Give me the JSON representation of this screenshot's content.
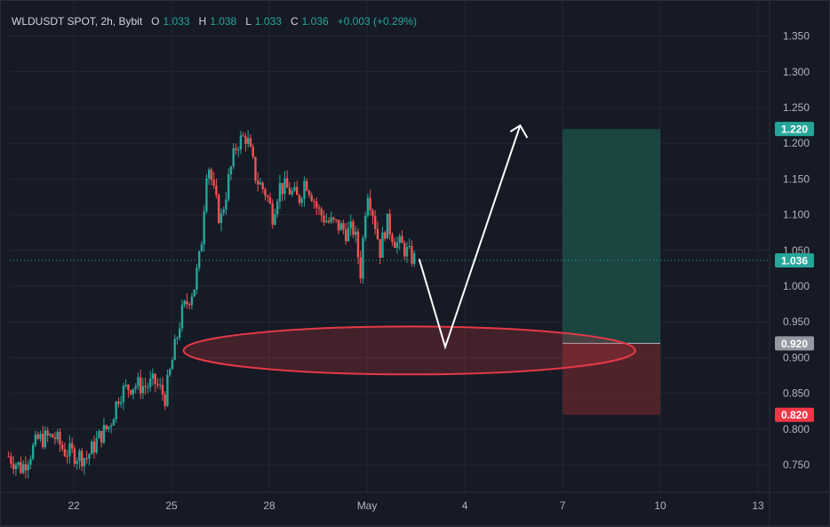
{
  "legend": {
    "symbol": "WLDUSDT SPOT, 2h, Bybit",
    "open_label": "O",
    "open": "1.033",
    "high_label": "H",
    "high": "1.038",
    "low_label": "L",
    "low": "1.033",
    "close_label": "C",
    "close": "1.036",
    "change": "+0.003 (+0.29%)"
  },
  "colors": {
    "up": "#26a69a",
    "down": "#ef5350",
    "grid": "#232733",
    "axis_text": "#b2b5be",
    "arrow": "#ffffff",
    "ellipse": "#e53946",
    "target_zone": "#1b4d47",
    "stop_zone": "#5a242c",
    "entry_tag": "#9598a1",
    "last_price_tag": "#26a69a",
    "stop_tag": "#f23645"
  },
  "chart_data": {
    "type": "candlestick",
    "symbol": "WLDUSDT SPOT, 2h, Bybit",
    "y_axis": {
      "ticks": [
        "1.350",
        "1.300",
        "1.250",
        "1.200",
        "1.150",
        "1.100",
        "1.050",
        "1.000",
        "0.950",
        "0.900",
        "0.850",
        "0.800",
        "0.750"
      ],
      "range": [
        0.7,
        1.39
      ]
    },
    "x_axis": {
      "ticks": [
        {
          "label": "22",
          "day": 22
        },
        {
          "label": "25",
          "day": 25
        },
        {
          "label": "28",
          "day": 28
        },
        {
          "label": "May",
          "day": 31
        },
        {
          "label": "4",
          "day": 34
        },
        {
          "label": "7",
          "day": 37
        },
        {
          "label": "10",
          "day": 40
        },
        {
          "label": "13",
          "day": 43
        }
      ],
      "range": [
        20.0,
        45.0
      ]
    },
    "price_path": [
      [
        20.0,
        0.762
      ],
      [
        20.4,
        0.745
      ],
      [
        20.9,
        0.785
      ],
      [
        21.4,
        0.79
      ],
      [
        21.7,
        0.77
      ],
      [
        22.0,
        0.765
      ],
      [
        22.4,
        0.76
      ],
      [
        22.8,
        0.79
      ],
      [
        23.1,
        0.805
      ],
      [
        23.4,
        0.85
      ],
      [
        23.8,
        0.862
      ],
      [
        24.2,
        0.86
      ],
      [
        24.5,
        0.865
      ],
      [
        24.8,
        0.845
      ],
      [
        25.0,
        0.89
      ],
      [
        25.3,
        0.96
      ],
      [
        25.7,
        1.0
      ],
      [
        25.9,
        1.05
      ],
      [
        26.1,
        1.18
      ],
      [
        26.3,
        1.13
      ],
      [
        26.5,
        1.09
      ],
      [
        26.8,
        1.16
      ],
      [
        27.0,
        1.2
      ],
      [
        27.3,
        1.21
      ],
      [
        27.6,
        1.15
      ],
      [
        27.9,
        1.13
      ],
      [
        28.1,
        1.1
      ],
      [
        28.3,
        1.14
      ],
      [
        28.6,
        1.135
      ],
      [
        28.9,
        1.12
      ],
      [
        29.1,
        1.15
      ],
      [
        29.3,
        1.13
      ],
      [
        29.5,
        1.105
      ],
      [
        29.8,
        1.09
      ],
      [
        30.1,
        1.085
      ],
      [
        30.4,
        1.075
      ],
      [
        30.6,
        1.08
      ],
      [
        30.8,
        1.02
      ],
      [
        31.0,
        1.14
      ],
      [
        31.2,
        1.1
      ],
      [
        31.4,
        1.05
      ],
      [
        31.6,
        1.09
      ],
      [
        31.9,
        1.06
      ],
      [
        32.1,
        1.055
      ],
      [
        32.3,
        1.043
      ],
      [
        32.5,
        1.036
      ]
    ],
    "last_price": 1.036,
    "current_price_line": "1.036",
    "projection_arrow": [
      [
        32.6,
        1.038
      ],
      [
        33.4,
        0.915
      ],
      [
        35.7,
        1.225
      ]
    ],
    "support_zone": {
      "center_day": 32.3,
      "center_price": 0.91,
      "half_width_days": 10.0,
      "half_height_price": 0.0335
    },
    "position": {
      "type": "long",
      "start_day": 37.0,
      "end_day": 40.0,
      "entry": 0.92,
      "target": 1.22,
      "stop": 0.82,
      "entry_label": "0.920",
      "target_label": "1.220",
      "stop_label": "0.820"
    }
  }
}
